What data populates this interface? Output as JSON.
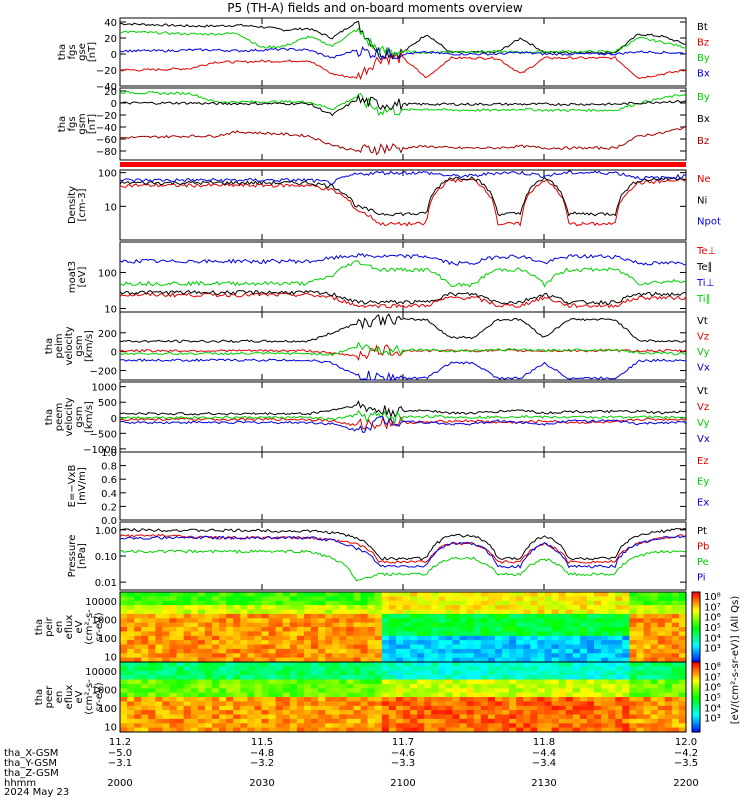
{
  "title": "P5 (TH-A) fields and on-board moments overview",
  "colors": {
    "black": "#000000",
    "red": "#e00000",
    "green": "#00d000",
    "blue": "#0000e0",
    "darkred": "#a00000",
    "bar": "#ff0000"
  },
  "chart_data": [
    {
      "type": "line",
      "panel": "fgs_gse",
      "ylabel": [
        "tha",
        "fgs",
        "gse",
        "[nT]"
      ],
      "ylim": [
        -40,
        45
      ],
      "yticks": [
        "40",
        "20",
        "0",
        "−20",
        "−40"
      ],
      "grid": false,
      "series": [
        {
          "name": "Bt",
          "color": "black",
          "values": [
            38,
            37,
            36,
            35,
            35,
            36,
            34,
            30,
            32,
            20,
            40,
            2,
            2,
            25,
            2,
            2,
            2,
            20,
            2,
            2,
            2,
            2,
            25,
            22,
            12
          ]
        },
        {
          "name": "Bz",
          "color": "red",
          "values": [
            -20,
            -20,
            -19,
            -18,
            -10,
            -10,
            -9,
            -9,
            -8,
            -25,
            -30,
            -5,
            -5,
            -30,
            -5,
            -5,
            -5,
            -25,
            -5,
            -5,
            -5,
            -5,
            -30,
            -25,
            -20
          ]
        },
        {
          "name": "By",
          "color": "green",
          "values": [
            28,
            27,
            26,
            25,
            25,
            26,
            8,
            10,
            22,
            10,
            30,
            3,
            3,
            2,
            3,
            3,
            3,
            2,
            3,
            3,
            3,
            3,
            20,
            15,
            8
          ]
        },
        {
          "name": "Bx",
          "color": "blue",
          "values": [
            4,
            4,
            4,
            5,
            5,
            4,
            5,
            6,
            5,
            -5,
            5,
            0,
            0,
            2,
            0,
            0,
            0,
            2,
            0,
            0,
            0,
            0,
            3,
            2,
            1
          ]
        }
      ]
    },
    {
      "type": "line",
      "panel": "fgs_gsm",
      "ylabel": [
        "tha",
        "fgs",
        "gsm",
        "[nT]"
      ],
      "ylim": [
        -95,
        25
      ],
      "yticks": [
        "20",
        "0",
        "−20",
        "−40",
        "−60",
        "−80"
      ],
      "grid": false,
      "series": [
        {
          "name": "By",
          "color": "green",
          "values": [
            18,
            17,
            16,
            16,
            2,
            2,
            2,
            2,
            2,
            -10,
            10,
            -12,
            -12,
            -10,
            -12,
            -12,
            -12,
            -10,
            -12,
            -12,
            -12,
            -12,
            0,
            8,
            15
          ]
        },
        {
          "name": "Bx",
          "color": "black",
          "values": [
            0,
            0,
            0,
            0,
            -1,
            -1,
            -1,
            -1,
            -1,
            -20,
            5,
            -2,
            -2,
            -2,
            -2,
            -2,
            -2,
            -2,
            -2,
            -2,
            -2,
            -2,
            0,
            2,
            3
          ]
        },
        {
          "name": "Bz",
          "color": "darkred",
          "values": [
            -58,
            -57,
            -56,
            -55,
            -55,
            -48,
            -50,
            -52,
            -55,
            -70,
            -80,
            -75,
            -75,
            -72,
            -75,
            -75,
            -75,
            -72,
            -75,
            -75,
            -75,
            -75,
            -55,
            -50,
            -40
          ]
        }
      ]
    },
    {
      "type": "line",
      "panel": "density",
      "ylabel": [
        "Density",
        "[cm-3]"
      ],
      "ylim": [
        1,
        120
      ],
      "scale": "log",
      "yticks": [
        "100",
        "10"
      ],
      "grid": false,
      "series": [
        {
          "name": "Ne",
          "color": "red",
          "values": [
            42,
            42,
            42,
            42,
            42,
            42,
            42,
            42,
            42,
            30,
            8,
            3,
            3,
            3,
            60,
            60,
            3,
            3,
            60,
            3,
            3,
            3,
            50,
            55,
            60
          ]
        },
        {
          "name": "Ni",
          "color": "black",
          "values": [
            50,
            50,
            50,
            50,
            50,
            50,
            50,
            50,
            50,
            40,
            10,
            6,
            6,
            6,
            70,
            70,
            6,
            6,
            70,
            6,
            6,
            6,
            60,
            65,
            70
          ]
        },
        {
          "name": "Npot",
          "color": "blue",
          "values": [
            60,
            60,
            60,
            60,
            60,
            60,
            60,
            60,
            60,
            50,
            90,
            100,
            100,
            100,
            80,
            80,
            100,
            100,
            80,
            100,
            100,
            100,
            70,
            70,
            80
          ]
        }
      ]
    },
    {
      "type": "line",
      "panel": "temperature",
      "ylabel": [
        "moat3",
        "[eV]"
      ],
      "ylim": [
        8,
        700
      ],
      "scale": "log",
      "yticks": [
        "100",
        "10"
      ],
      "grid": false,
      "series": [
        {
          "name": "Te⊥",
          "color": "red",
          "values": [
            24,
            24,
            24,
            24,
            24,
            24,
            24,
            24,
            24,
            20,
            12,
            12,
            12,
            12,
            20,
            20,
            12,
            12,
            20,
            12,
            12,
            12,
            20,
            20,
            20
          ]
        },
        {
          "name": "Te∥",
          "color": "black",
          "values": [
            28,
            28,
            28,
            28,
            28,
            28,
            28,
            28,
            28,
            25,
            15,
            15,
            15,
            15,
            25,
            25,
            15,
            15,
            25,
            15,
            15,
            15,
            25,
            25,
            25
          ]
        },
        {
          "name": "Ti⊥",
          "color": "blue",
          "values": [
            200,
            210,
            200,
            210,
            200,
            210,
            200,
            210,
            200,
            250,
            300,
            280,
            280,
            280,
            180,
            180,
            280,
            280,
            180,
            280,
            280,
            280,
            180,
            180,
            180
          ]
        },
        {
          "name": "Ti∥",
          "color": "green",
          "values": [
            50,
            50,
            50,
            50,
            50,
            50,
            50,
            50,
            50,
            80,
            200,
            120,
            120,
            120,
            45,
            45,
            120,
            120,
            45,
            120,
            120,
            120,
            50,
            55,
            60
          ]
        }
      ]
    },
    {
      "type": "line",
      "panel": "peim_velocity",
      "ylabel": [
        "tha",
        "peim",
        "velocity",
        "gsm",
        "[km/s]"
      ],
      "ylim": [
        -300,
        420
      ],
      "yticks": [
        "200",
        "0",
        "−200"
      ],
      "grid": false,
      "series": [
        {
          "name": "Vt",
          "color": "black",
          "values": [
            110,
            110,
            110,
            110,
            110,
            110,
            110,
            110,
            110,
            200,
            300,
            340,
            340,
            340,
            150,
            150,
            340,
            340,
            150,
            340,
            340,
            340,
            120,
            110,
            110
          ]
        },
        {
          "name": "Vz",
          "color": "red",
          "values": [
            10,
            10,
            10,
            10,
            10,
            10,
            10,
            10,
            10,
            -20,
            -40,
            10,
            10,
            10,
            10,
            10,
            10,
            10,
            10,
            10,
            10,
            10,
            10,
            10,
            10
          ]
        },
        {
          "name": "Vy",
          "color": "green",
          "values": [
            -20,
            -20,
            -20,
            -20,
            -20,
            -20,
            -20,
            -20,
            -20,
            -30,
            50,
            20,
            20,
            20,
            10,
            10,
            20,
            20,
            10,
            20,
            20,
            20,
            -10,
            -20,
            -20
          ]
        },
        {
          "name": "Vx",
          "color": "blue",
          "values": [
            -90,
            -90,
            -90,
            -90,
            -90,
            -90,
            -90,
            -90,
            -90,
            -120,
            -250,
            -280,
            -280,
            -280,
            -120,
            -120,
            -280,
            -280,
            -120,
            -280,
            -280,
            -280,
            -100,
            -90,
            -90
          ]
        }
      ]
    },
    {
      "type": "line",
      "panel": "peem_velocity",
      "ylabel": [
        "tha",
        "peem",
        "velocity",
        "gsm",
        "[km/s]"
      ],
      "ylim": [
        -1100,
        1150
      ],
      "yticks": [
        "1000",
        "500",
        "0",
        "−500",
        "−1000"
      ],
      "grid": false,
      "series": [
        {
          "name": "Vt",
          "color": "black",
          "values": [
            130,
            130,
            130,
            130,
            130,
            130,
            130,
            130,
            130,
            250,
            400,
            200,
            200,
            250,
            150,
            150,
            200,
            250,
            150,
            200,
            200,
            200,
            200,
            150,
            200
          ]
        },
        {
          "name": "Vz",
          "color": "red",
          "values": [
            -50,
            -50,
            -50,
            -50,
            -50,
            -50,
            -50,
            -50,
            -50,
            -100,
            -250,
            -150,
            -150,
            -150,
            -100,
            -100,
            -150,
            -150,
            -100,
            -150,
            -150,
            -150,
            -50,
            -50,
            -50
          ]
        },
        {
          "name": "Vy",
          "color": "green",
          "values": [
            10,
            10,
            10,
            10,
            10,
            10,
            10,
            10,
            10,
            -50,
            80,
            20,
            20,
            50,
            20,
            20,
            20,
            50,
            20,
            20,
            20,
            20,
            30,
            20,
            10
          ]
        },
        {
          "name": "Vx",
          "color": "blue",
          "values": [
            -150,
            -150,
            -150,
            -150,
            -150,
            -150,
            -150,
            -150,
            -150,
            -200,
            -400,
            -100,
            -100,
            -150,
            -200,
            -200,
            -100,
            -150,
            -200,
            -100,
            -100,
            -100,
            -200,
            -150,
            -150
          ]
        }
      ]
    },
    {
      "type": "line",
      "panel": "efield",
      "ylabel": [
        "E=−VxB",
        "[mV/m]"
      ],
      "ylim": [
        0,
        1
      ],
      "yticks": [
        "1.0",
        "0.8",
        "0.6",
        "0.4",
        "0.2",
        "0.0"
      ],
      "grid": false,
      "series": [
        {
          "name": "Ez",
          "color": "red",
          "values": []
        },
        {
          "name": "Ey",
          "color": "green",
          "values": []
        },
        {
          "name": "Ex",
          "color": "blue",
          "values": []
        }
      ]
    },
    {
      "type": "line",
      "panel": "pressure",
      "ylabel": [
        "Pressure",
        "[nPa]"
      ],
      "ylim": [
        0.005,
        2.0
      ],
      "scale": "log",
      "yticks": [
        "1.00",
        "0.10",
        "0.01"
      ],
      "grid": false,
      "series": [
        {
          "name": "Pt",
          "color": "black",
          "values": [
            1.0,
            1.0,
            1.0,
            0.95,
            0.95,
            0.95,
            0.95,
            0.9,
            0.9,
            0.8,
            0.5,
            0.08,
            0.08,
            0.08,
            0.6,
            0.6,
            0.08,
            0.08,
            0.6,
            0.08,
            0.08,
            0.08,
            0.6,
            0.9,
            1.1
          ]
        },
        {
          "name": "Pb",
          "color": "red",
          "values": [
            0.6,
            0.6,
            0.6,
            0.55,
            0.5,
            0.5,
            0.5,
            0.5,
            0.5,
            0.4,
            0.3,
            0.06,
            0.06,
            0.06,
            0.3,
            0.3,
            0.06,
            0.06,
            0.3,
            0.06,
            0.06,
            0.06,
            0.3,
            0.5,
            0.6
          ]
        },
        {
          "name": "Pe",
          "color": "green",
          "values": [
            0.15,
            0.15,
            0.15,
            0.15,
            0.15,
            0.15,
            0.15,
            0.15,
            0.15,
            0.08,
            0.01,
            0.02,
            0.02,
            0.02,
            0.08,
            0.08,
            0.02,
            0.02,
            0.08,
            0.02,
            0.02,
            0.02,
            0.1,
            0.15,
            0.15
          ]
        },
        {
          "name": "Pi",
          "color": "blue",
          "values": [
            0.5,
            0.5,
            0.5,
            0.5,
            0.5,
            0.5,
            0.5,
            0.5,
            0.5,
            0.4,
            0.2,
            0.04,
            0.04,
            0.04,
            0.3,
            0.3,
            0.04,
            0.04,
            0.3,
            0.04,
            0.04,
            0.04,
            0.3,
            0.5,
            0.6
          ]
        }
      ]
    },
    {
      "type": "heatmap",
      "panel": "peir_spectrogram",
      "ylabel": [
        "tha",
        "peir",
        "en",
        "eflux",
        "eV",
        "(cm²-s-",
        "sr-eV)"
      ],
      "ylim": [
        5,
        30000
      ],
      "scale": "log",
      "yticks": [
        "10000",
        "1000",
        "100",
        "10"
      ]
    },
    {
      "type": "heatmap",
      "panel": "peer_spectrogram",
      "ylabel": [
        "tha",
        "peer",
        "en",
        "eflux",
        "eV",
        "(cm²-s-",
        "sr-eV)"
      ],
      "ylim": [
        5,
        30000
      ],
      "scale": "log",
      "yticks": [
        "10000",
        "1000",
        "100",
        "10"
      ]
    }
  ],
  "colorbar": {
    "label": "[eV/(cm²-s-sr-eV)] (All Qs)",
    "ticks_upper": [
      "10⁸",
      "10⁷",
      "10⁶",
      "10⁵",
      "10⁴",
      "10³"
    ],
    "ticks_lower": [
      "10⁸",
      "10⁷",
      "10⁶",
      "10⁵",
      "10⁴",
      "10³"
    ]
  },
  "xaxis": {
    "ticks": [
      "11.2",
      "11.5",
      "11.7",
      "11.8",
      "12.0"
    ],
    "rows": [
      {
        "label": "tha_X-GSM",
        "values": [
          "−5.0",
          "−4.8",
          "−4.6",
          "−4.4",
          "−4.2"
        ]
      },
      {
        "label": "tha_Y-GSM",
        "values": [
          "−3.1",
          "−3.2",
          "−3.3",
          "−3.4",
          "−3.5"
        ]
      },
      {
        "label": "tha_Z-GSM",
        "values": [
          "",
          "",
          "",
          "",
          ""
        ]
      },
      {
        "label": "hhmm",
        "values": [
          "2000",
          "2030",
          "2100",
          "2130",
          "2200"
        ]
      }
    ],
    "date": "2024 May 23"
  }
}
